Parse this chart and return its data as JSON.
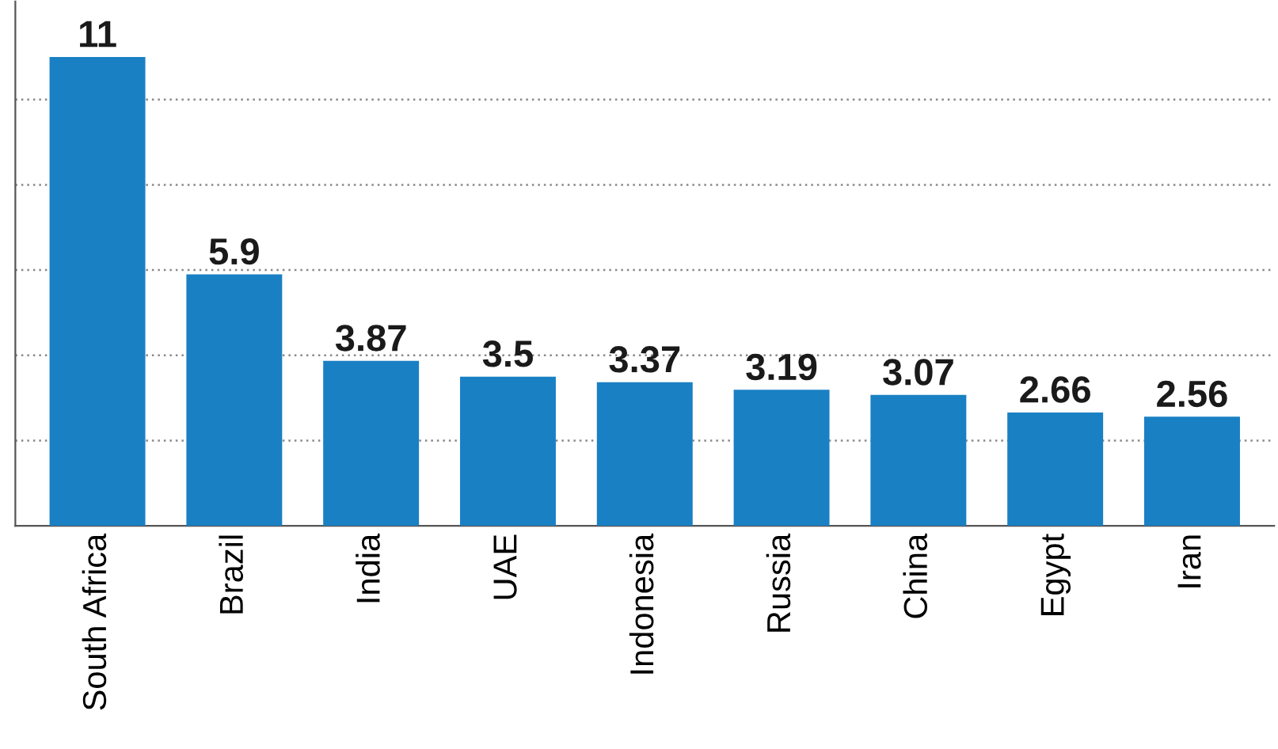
{
  "chart_data": {
    "type": "bar",
    "categories": [
      "South Africa",
      "Brazil",
      "India",
      "UAE",
      "Indonesia",
      "Russia",
      "China",
      "Egypt",
      "Iran"
    ],
    "values": [
      11,
      5.9,
      3.87,
      3.5,
      3.37,
      3.19,
      3.07,
      2.66,
      2.56
    ],
    "value_labels": [
      "11",
      "5.9",
      "3.87",
      "3.5",
      "3.37",
      "3.19",
      "3.07",
      "2.66",
      "2.56"
    ],
    "color": "#1a80c4",
    "ylim": [
      0,
      12.3
    ],
    "yticks": [
      {
        "value": 2,
        "label": null
      },
      {
        "value": 4,
        "label": null
      },
      {
        "value": 6,
        "label": null
      },
      {
        "value": 8,
        "label": null
      },
      {
        "value": 10,
        "label": null
      }
    ],
    "tick_labels": "x",
    "grid": "y",
    "legend": false
  }
}
